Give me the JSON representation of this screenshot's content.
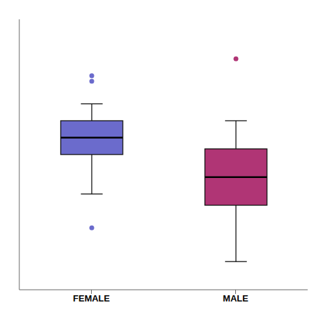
{
  "chart_data": {
    "type": "box",
    "categories": [
      "FEMALE",
      "MALE"
    ],
    "q1": [
      -19.0,
      -23.5
    ],
    "median": [
      -17.5,
      -21.0
    ],
    "q3": [
      -16.0,
      -18.5
    ],
    "whisker_low": [
      -22.5,
      -28.5
    ],
    "whisker_high": [
      -14.5,
      -16.0
    ],
    "outliers": [
      [
        -12.5,
        -12.0,
        -25.5
      ],
      [
        -10.5
      ]
    ],
    "colors": [
      "#6b6bcc",
      "#b03575"
    ],
    "ylim": [
      -31,
      -7
    ],
    "tick_labels": "x"
  }
}
